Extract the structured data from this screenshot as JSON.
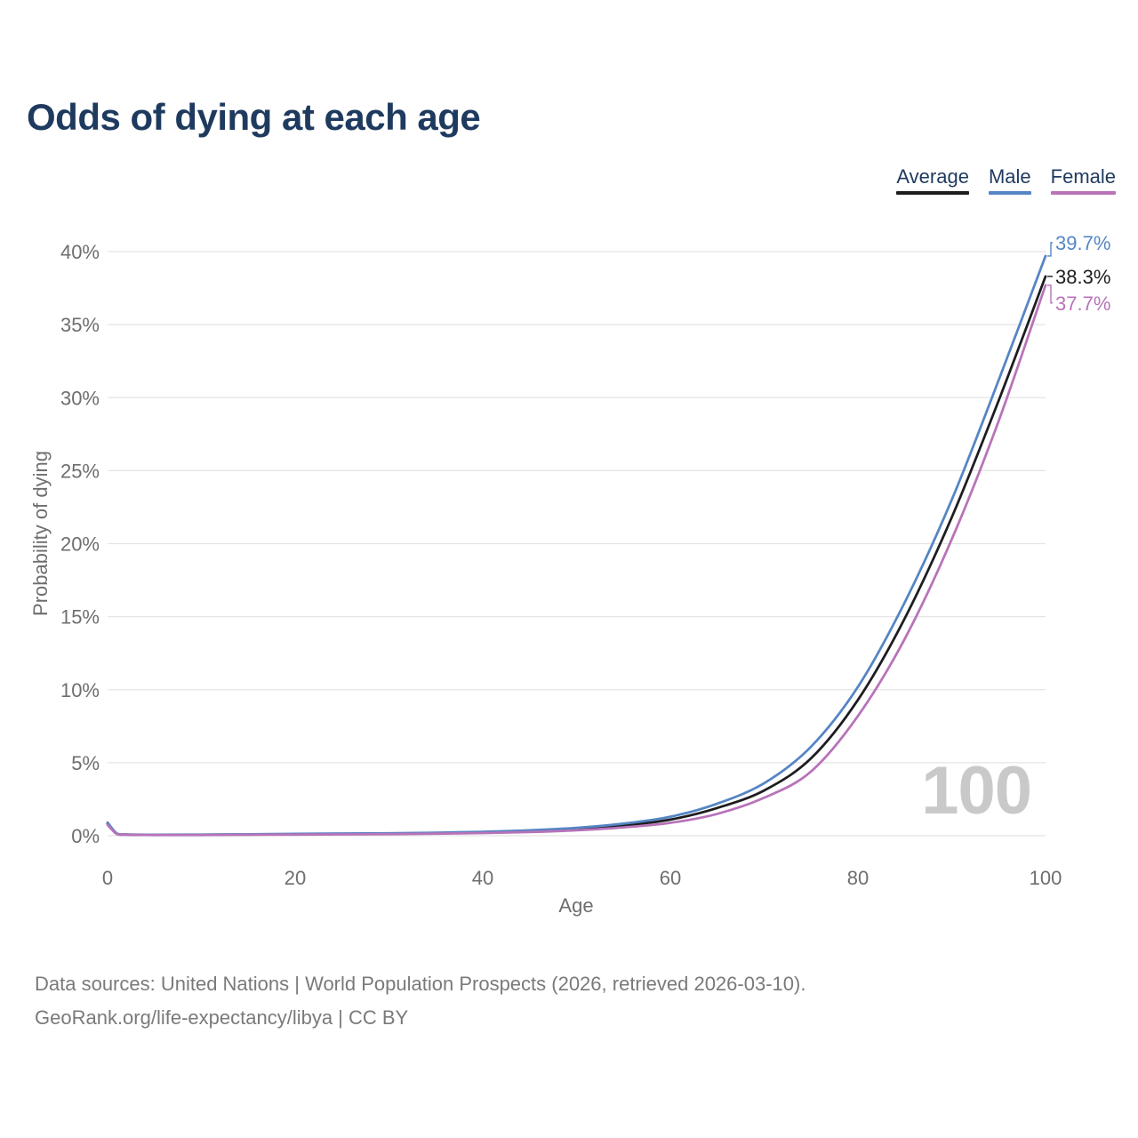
{
  "header": {
    "title": "Odds of dying at each age"
  },
  "footer": {
    "line1": "Data sources: United Nations | World Population Prospects (2026, retrieved 2026-03-10).",
    "line2": "GeoRank.org/life-expectancy/libya | CC BY"
  },
  "colors": {
    "title": "#1e3a5f",
    "tick": "#6e6e6e",
    "footer": "#7a7a7a",
    "grid": "#e4e4e4",
    "watermark": "#c9c9c9",
    "average": "#1d1d1f",
    "male": "#5585c4",
    "female": "#b873b9"
  },
  "chart_data": {
    "type": "line",
    "title": "Odds of dying at each age",
    "xlabel": "Age",
    "ylabel": "Probability of dying",
    "xlim": [
      0,
      100
    ],
    "ylim": [
      0,
      40
    ],
    "xticks": [
      0,
      20,
      40,
      60,
      80,
      100
    ],
    "yticks": [
      0,
      5,
      10,
      15,
      20,
      25,
      30,
      35,
      40
    ],
    "ytick_suffix": "%",
    "grid": "horizontal-only",
    "legend_position": "top-right",
    "watermark": "100",
    "x": [
      0,
      1,
      2,
      5,
      10,
      15,
      20,
      25,
      30,
      35,
      40,
      45,
      50,
      55,
      60,
      65,
      70,
      75,
      80,
      85,
      90,
      95,
      100
    ],
    "series": [
      {
        "name": "Average",
        "color": "#1d1d1f",
        "end_label": "38.3%",
        "end_value": 38.3,
        "label_dy": 0,
        "values": [
          0.82,
          0.13,
          0.08,
          0.06,
          0.07,
          0.08,
          0.1,
          0.12,
          0.14,
          0.17,
          0.23,
          0.31,
          0.46,
          0.7,
          1.1,
          1.9,
          3.1,
          5.3,
          9.3,
          14.9,
          21.8,
          29.8,
          38.3
        ]
      },
      {
        "name": "Male",
        "color": "#5585c4",
        "end_label": "39.7%",
        "end_value": 39.7,
        "label_dy": -15,
        "values": [
          0.9,
          0.15,
          0.09,
          0.07,
          0.08,
          0.1,
          0.13,
          0.15,
          0.17,
          0.21,
          0.27,
          0.37,
          0.54,
          0.83,
          1.3,
          2.2,
          3.6,
          6.1,
          10.2,
          16.0,
          23.0,
          31.2,
          39.7
        ]
      },
      {
        "name": "Female",
        "color": "#b873b9",
        "end_label": "37.7%",
        "end_value": 37.7,
        "label_dy": 20,
        "values": [
          0.74,
          0.11,
          0.07,
          0.05,
          0.05,
          0.07,
          0.08,
          0.09,
          0.11,
          0.14,
          0.18,
          0.25,
          0.37,
          0.57,
          0.88,
          1.5,
          2.6,
          4.4,
          8.2,
          13.5,
          20.3,
          28.4,
          37.7
        ]
      }
    ]
  }
}
